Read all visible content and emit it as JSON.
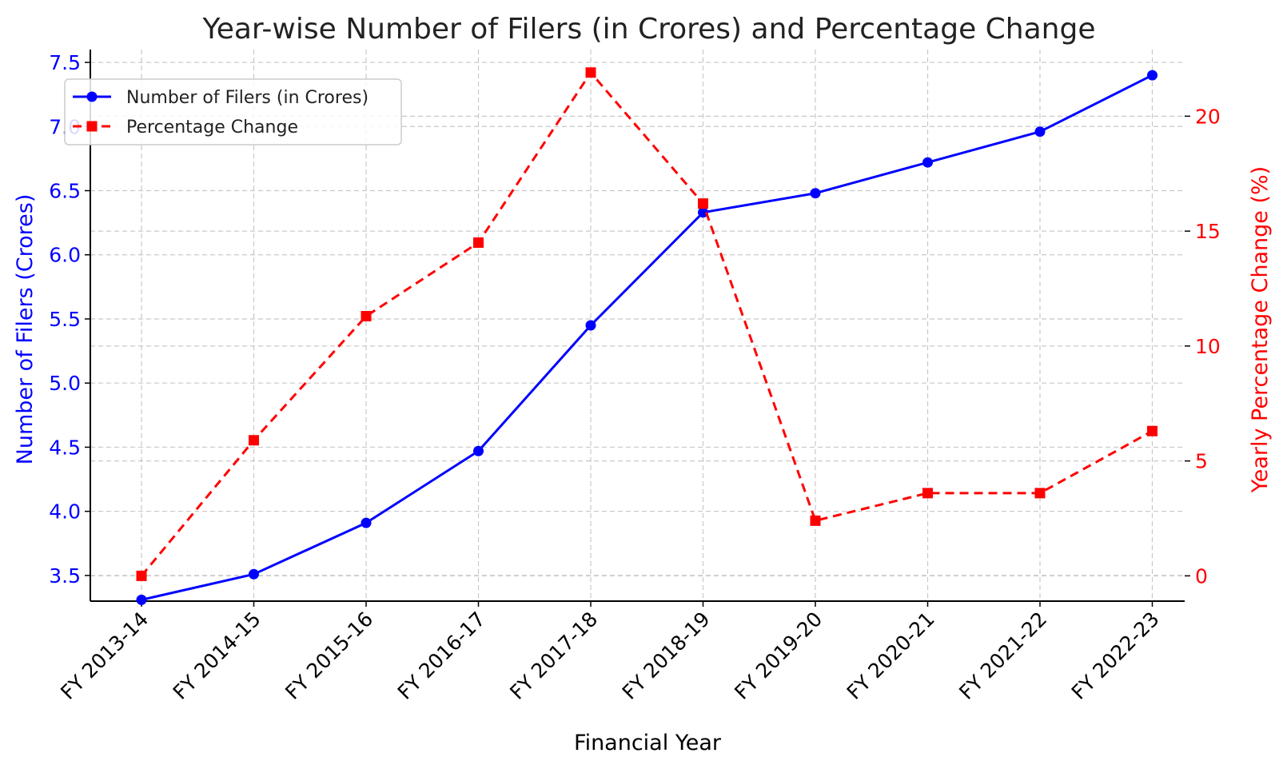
{
  "chart_data": {
    "type": "line",
    "title": "Year-wise Number of Filers (in Crores) and Percentage Change",
    "xlabel": "Financial Year",
    "ylabel_left": "Number of Filers (Crores)",
    "ylabel_right": "Yearly Percentage Change (%)",
    "categories": [
      "FY 2013-14",
      "FY 2014-15",
      "FY 2015-16",
      "FY 2016-17",
      "FY 2017-18",
      "FY 2018-19",
      "FY 2019-20",
      "FY 2020-21",
      "FY 2021-22",
      "FY 2022-23"
    ],
    "left_axis": {
      "ticks": [
        3.5,
        4.0,
        4.5,
        5.0,
        5.5,
        6.0,
        6.5,
        7.0,
        7.5
      ],
      "ylim": [
        3.3,
        7.6
      ]
    },
    "right_axis": {
      "ticks": [
        0,
        5,
        10,
        15,
        20
      ],
      "ylim": [
        -1.1,
        22.9
      ]
    },
    "grid": true,
    "legend_position": "top-left",
    "series": [
      {
        "name": "Number of Filers (in Crores)",
        "axis": "left",
        "marker": "circle",
        "style": "solid",
        "color": "#0000ff",
        "values": [
          3.31,
          3.51,
          3.91,
          4.47,
          5.45,
          6.33,
          6.48,
          6.72,
          6.96,
          7.4
        ]
      },
      {
        "name": "Percentage Change",
        "axis": "right",
        "marker": "square",
        "style": "dashed",
        "color": "#ff0000",
        "values": [
          0.0,
          5.9,
          11.3,
          14.5,
          21.9,
          16.2,
          2.4,
          3.6,
          3.6,
          6.3
        ]
      }
    ]
  }
}
